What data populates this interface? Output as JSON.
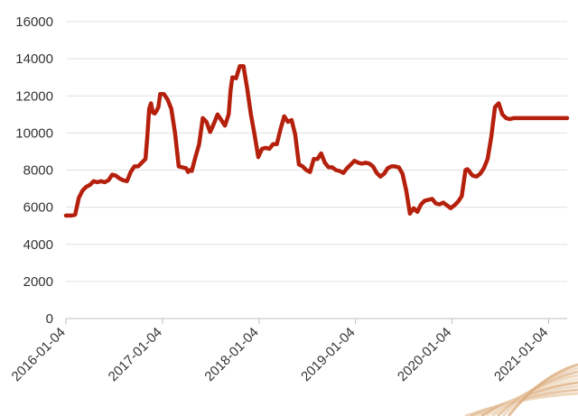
{
  "chart_data": {
    "type": "line",
    "title": "",
    "xlabel": "",
    "ylabel": "",
    "ylim": [
      0,
      16000
    ],
    "y_ticks": [
      "0",
      "2000",
      "4000",
      "6000",
      "8000",
      "10000",
      "12000",
      "14000",
      "16000"
    ],
    "x_tick_labels": [
      "2016-01-04",
      "2017-01-04",
      "2018-01-04",
      "2019-01-04",
      "2020-01-04",
      "2021-01-04"
    ],
    "x_tick_dates": [
      "2016-01-04",
      "2017-01-04",
      "2018-01-04",
      "2019-01-04",
      "2020-01-04",
      "2021-01-04"
    ],
    "xlim": [
      "2016-01-04",
      "2021-03-15"
    ],
    "grid": "horizontal",
    "series": [
      {
        "color": "#b5200d",
        "x": [
          "2016-01-04",
          "2016-01-25",
          "2016-02-08",
          "2016-02-22",
          "2016-03-07",
          "2016-03-21",
          "2016-04-04",
          "2016-04-18",
          "2016-05-02",
          "2016-05-16",
          "2016-05-30",
          "2016-06-13",
          "2016-06-27",
          "2016-07-11",
          "2016-07-25",
          "2016-08-08",
          "2016-08-22",
          "2016-09-05",
          "2016-09-19",
          "2016-10-03",
          "2016-10-17",
          "2016-10-31",
          "2016-11-07",
          "2016-11-14",
          "2016-11-21",
          "2016-11-28",
          "2016-12-05",
          "2016-12-12",
          "2016-12-19",
          "2016-12-26",
          "2017-01-09",
          "2017-01-23",
          "2017-02-06",
          "2017-02-20",
          "2017-03-06",
          "2017-03-20",
          "2017-04-03",
          "2017-04-10",
          "2017-04-17",
          "2017-04-24",
          "2017-05-08",
          "2017-05-22",
          "2017-06-05",
          "2017-06-19",
          "2017-07-03",
          "2017-07-17",
          "2017-07-31",
          "2017-08-14",
          "2017-08-28",
          "2017-09-11",
          "2017-09-18",
          "2017-09-25",
          "2017-10-09",
          "2017-10-23",
          "2017-11-06",
          "2017-11-20",
          "2017-12-04",
          "2017-12-18",
          "2018-01-01",
          "2018-01-15",
          "2018-01-29",
          "2018-02-12",
          "2018-02-26",
          "2018-03-12",
          "2018-03-26",
          "2018-04-09",
          "2018-04-23",
          "2018-05-07",
          "2018-05-21",
          "2018-06-04",
          "2018-06-18",
          "2018-07-02",
          "2018-07-16",
          "2018-07-30",
          "2018-08-13",
          "2018-08-27",
          "2018-09-10",
          "2018-09-24",
          "2018-10-08",
          "2018-10-22",
          "2018-11-05",
          "2018-11-19",
          "2018-12-03",
          "2018-12-17",
          "2018-12-31",
          "2019-01-14",
          "2019-01-28",
          "2019-02-11",
          "2019-02-25",
          "2019-03-11",
          "2019-03-25",
          "2019-04-08",
          "2019-04-22",
          "2019-05-06",
          "2019-05-20",
          "2019-06-03",
          "2019-06-17",
          "2019-07-01",
          "2019-07-15",
          "2019-07-29",
          "2019-08-12",
          "2019-08-26",
          "2019-09-09",
          "2019-09-23",
          "2019-10-07",
          "2019-10-21",
          "2019-11-04",
          "2019-11-18",
          "2019-12-02",
          "2019-12-16",
          "2019-12-30",
          "2020-01-13",
          "2020-01-27",
          "2020-02-10",
          "2020-02-24",
          "2020-03-02",
          "2020-03-09",
          "2020-03-16",
          "2020-03-23",
          "2020-04-06",
          "2020-04-20",
          "2020-05-04",
          "2020-05-18",
          "2020-06-01",
          "2020-06-15",
          "2020-06-29",
          "2020-07-13",
          "2020-07-27",
          "2020-08-10",
          "2020-08-24",
          "2020-09-07",
          "2020-09-21",
          "2020-10-05",
          "2020-10-19",
          "2020-11-02",
          "2020-11-09",
          "2020-11-16",
          "2020-11-30",
          "2020-12-14",
          "2020-12-28",
          "2021-01-11",
          "2021-01-25",
          "2021-02-01",
          "2021-02-08",
          "2021-02-15",
          "2021-02-22",
          "2021-03-01",
          "2021-03-08",
          "2021-03-15"
        ],
        "y": [
          5550,
          5550,
          5600,
          6500,
          6900,
          7100,
          7200,
          7400,
          7350,
          7400,
          7350,
          7450,
          7750,
          7700,
          7550,
          7450,
          7400,
          7900,
          8200,
          8200,
          8400,
          8600,
          9800,
          11300,
          11600,
          11100,
          11050,
          11200,
          11400,
          12100,
          12100,
          11800,
          11300,
          10000,
          8200,
          8150,
          8100,
          7900,
          8000,
          7950,
          8700,
          9400,
          10800,
          10600,
          10050,
          10500,
          11000,
          10700,
          10400,
          11000,
          12300,
          13000,
          12950,
          13600,
          13600,
          12400,
          11000,
          9900,
          8700,
          9150,
          9200,
          9150,
          9400,
          9400,
          10200,
          10900,
          10600,
          10700,
          9900,
          8300,
          8200,
          8000,
          7900,
          8600,
          8600,
          8900,
          8400,
          8150,
          8150,
          8000,
          7950,
          7850,
          8100,
          8300,
          8500,
          8400,
          8350,
          8400,
          8350,
          8200,
          7850,
          7650,
          7800,
          8100,
          8200,
          8200,
          8150,
          7800,
          6900,
          5650,
          5950,
          5750,
          6150,
          6350,
          6400,
          6450,
          6200,
          6150,
          6250,
          6100,
          5950,
          6100,
          6300,
          6600,
          8000,
          8050,
          7950,
          7800,
          7700,
          7650,
          7800,
          8100,
          8600,
          9800,
          11400,
          11600,
          11000,
          10800,
          10750,
          10800,
          10800,
          10800,
          10800,
          10800,
          10800,
          10800,
          10800,
          10800,
          10800,
          10800,
          10800,
          10800,
          10800,
          10800,
          10800,
          10800,
          10800,
          10800,
          10800
        ]
      }
    ]
  }
}
